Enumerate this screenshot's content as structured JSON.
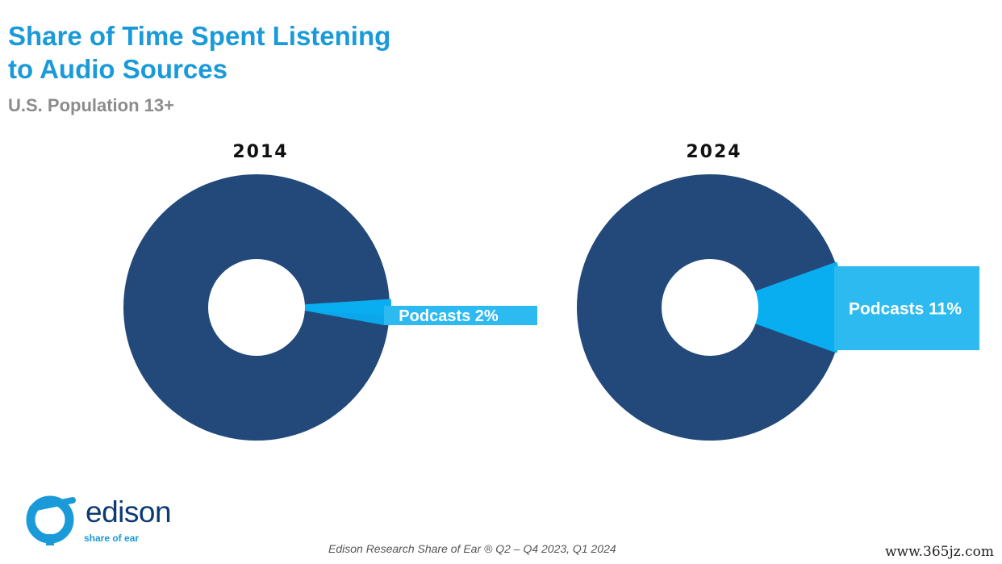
{
  "title": {
    "line1": "Share of Time Spent Listening",
    "line2": "to Audio Sources"
  },
  "subtitle": "U.S. Population 13+",
  "colors": {
    "title": "#1a9ad9",
    "subtitle": "#8c8c8c",
    "other_slice": "#22497a",
    "podcast_slice": "#0aaef0",
    "callout": "#2dbaf0"
  },
  "chart_data": [
    {
      "type": "pie",
      "title": "2014",
      "slices": [
        {
          "label": "Podcasts",
          "value": 2,
          "display": "Podcasts 2%",
          "color": "#0aaef0",
          "highlight": true
        },
        {
          "label": "",
          "value": 98,
          "color": "#22497a"
        }
      ]
    },
    {
      "type": "pie",
      "title": "2024",
      "slices": [
        {
          "label": "Podcasts",
          "value": 11,
          "display": "Podcasts 11%",
          "color": "#0aaef0",
          "highlight": true
        },
        {
          "label": "",
          "value": 89,
          "color": "#22497a"
        }
      ]
    }
  ],
  "logo": {
    "word": "edison",
    "tagline": "share of ear"
  },
  "source": "Edison Research Share of Ear ®  Q2 – Q4 2023, Q1 2024",
  "watermark": "www.365jz.com"
}
